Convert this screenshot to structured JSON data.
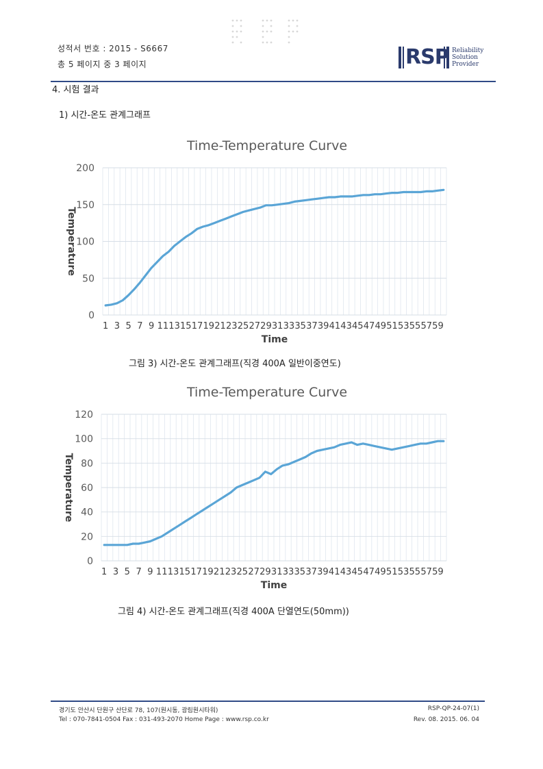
{
  "header": {
    "report_no": "성적서 번호 : 2015 - S6667",
    "pages": "총 5 페이지 중 3 페이지",
    "logo": "RSP",
    "logo_tagline": [
      "Reliability",
      "Solution",
      "Provider"
    ]
  },
  "section_title": "4. 시험 결과",
  "subsection_title": "1) 시간-온도 관계그래프",
  "charts": [
    {
      "caption": "그림 3) 시간-온도 관계그래프(직경 400A 일반이중연도)"
    },
    {
      "caption": "그림 4) 시간-온도 관계그래프(직경 400A 단열연도(50mm))"
    }
  ],
  "chart_data": [
    {
      "type": "line",
      "title": "Time-Temperature Curve",
      "xlabel": "Time",
      "ylabel": "Temperature",
      "ylim": [
        0,
        200
      ],
      "yticks": [
        0,
        50,
        100,
        150,
        200
      ],
      "xticks": [
        1,
        3,
        5,
        7,
        9,
        11,
        13,
        15,
        17,
        19,
        21,
        23,
        25,
        27,
        29,
        31,
        33,
        35,
        37,
        39,
        41,
        43,
        45,
        47,
        49,
        51,
        53,
        55,
        57,
        59
      ],
      "grid": true,
      "line_color": "#5aa5d6",
      "x": [
        1,
        2,
        3,
        4,
        5,
        6,
        7,
        8,
        9,
        10,
        11,
        12,
        13,
        14,
        15,
        16,
        17,
        18,
        19,
        20,
        21,
        22,
        23,
        24,
        25,
        26,
        27,
        28,
        29,
        30,
        31,
        32,
        33,
        34,
        35,
        36,
        37,
        38,
        39,
        40,
        41,
        42,
        43,
        44,
        45,
        46,
        47,
        48,
        49,
        50,
        51,
        52,
        53,
        54,
        55,
        56,
        57,
        58,
        59,
        60
      ],
      "values": [
        13,
        14,
        16,
        20,
        27,
        35,
        44,
        54,
        64,
        72,
        80,
        86,
        94,
        100,
        106,
        111,
        117,
        120,
        122,
        125,
        128,
        131,
        134,
        137,
        140,
        142,
        144,
        146,
        149,
        149,
        150,
        151,
        152,
        154,
        155,
        156,
        157,
        158,
        159,
        160,
        160,
        161,
        161,
        161,
        162,
        163,
        163,
        164,
        164,
        165,
        166,
        166,
        167,
        167,
        167,
        167,
        168,
        168,
        169,
        170
      ]
    },
    {
      "type": "line",
      "title": "Time-Temperature Curve",
      "xlabel": "Time",
      "ylabel": "Temperature",
      "ylim": [
        0,
        120
      ],
      "yticks": [
        0,
        20,
        40,
        60,
        80,
        100,
        120
      ],
      "xticks": [
        1,
        3,
        5,
        7,
        9,
        11,
        13,
        15,
        17,
        19,
        21,
        23,
        25,
        27,
        29,
        31,
        33,
        35,
        37,
        39,
        41,
        43,
        45,
        47,
        49,
        51,
        53,
        55,
        57,
        59
      ],
      "grid": true,
      "line_color": "#5aa5d6",
      "x": [
        1,
        2,
        3,
        4,
        5,
        6,
        7,
        8,
        9,
        10,
        11,
        12,
        13,
        14,
        15,
        16,
        17,
        18,
        19,
        20,
        21,
        22,
        23,
        24,
        25,
        26,
        27,
        28,
        29,
        30,
        31,
        32,
        33,
        34,
        35,
        36,
        37,
        38,
        39,
        40,
        41,
        42,
        43,
        44,
        45,
        46,
        47,
        48,
        49,
        50,
        51,
        52,
        53,
        54,
        55,
        56,
        57,
        58,
        59,
        60
      ],
      "values": [
        13,
        13,
        13,
        13,
        13,
        14,
        14,
        15,
        16,
        18,
        20,
        23,
        26,
        29,
        32,
        35,
        38,
        41,
        44,
        47,
        50,
        53,
        56,
        60,
        62,
        64,
        66,
        68,
        73,
        71,
        75,
        78,
        79,
        81,
        83,
        85,
        88,
        90,
        91,
        92,
        93,
        95,
        96,
        97,
        95,
        96,
        95,
        94,
        93,
        92,
        91,
        92,
        93,
        94,
        95,
        96,
        96,
        97,
        98,
        98
      ]
    }
  ],
  "footer": {
    "address": "경기도 안산시 단원구 산단로 78, 107(원시동, 광림원시타워)",
    "contact": "Tel : 070-7841-0504  Fax : 031-493-2070  Home Page : www.rsp.co.kr",
    "doc_code": "RSP-QP-24-07(1)",
    "revision": "Rev. 08. 2015. 06. 04"
  }
}
